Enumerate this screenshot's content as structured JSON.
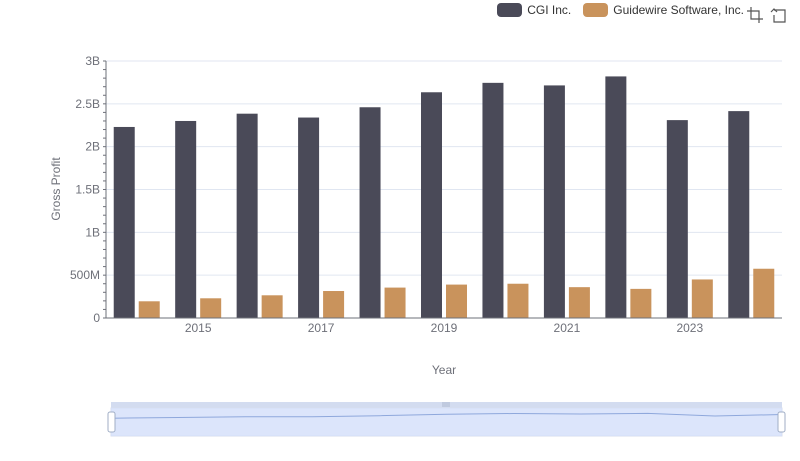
{
  "chart_data": {
    "type": "bar",
    "title": "",
    "xlabel": "Year",
    "ylabel": "Gross Profit",
    "categories": [
      "2014",
      "2015",
      "2016",
      "2017",
      "2018",
      "2019",
      "2020",
      "2021",
      "2022",
      "2023",
      "2024"
    ],
    "x_tick_labels": [
      "2015",
      "2017",
      "2019",
      "2021",
      "2023"
    ],
    "y_tick_labels": [
      "0",
      "500M",
      "1B",
      "1.5B",
      "2B",
      "2.5B",
      "3B"
    ],
    "ylim": [
      0,
      3000000000
    ],
    "grid": true,
    "legend_position": "top-right",
    "series": [
      {
        "name": "CGI Inc.",
        "color": "#4a4a58",
        "values": [
          2230000000,
          2300000000,
          2385000000,
          2340000000,
          2460000000,
          2635000000,
          2745000000,
          2715000000,
          2820000000,
          2310000000,
          2415000000
        ]
      },
      {
        "name": "Guidewire Software, Inc.",
        "color": "#c9935c",
        "values": [
          195000000,
          230000000,
          265000000,
          315000000,
          355000000,
          390000000,
          400000000,
          360000000,
          340000000,
          450000000,
          575000000
        ]
      }
    ]
  },
  "toolbox": {
    "zoom_icon": "zoom-icon",
    "reset_icon": "restore-icon"
  }
}
